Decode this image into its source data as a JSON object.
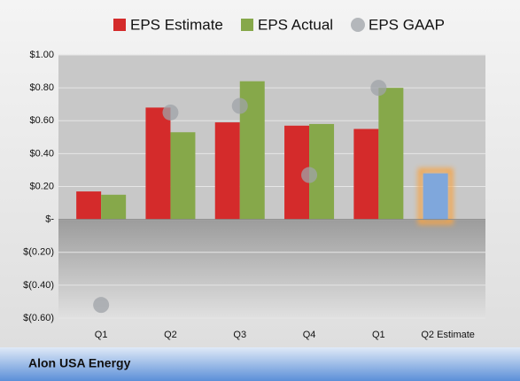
{
  "chart_data": {
    "type": "bar",
    "title": "Alon USA Energy",
    "categories": [
      "Q1",
      "Q2",
      "Q3",
      "Q4",
      "Q1",
      "Q2 Estimate"
    ],
    "series": [
      {
        "name": "EPS Estimate",
        "color": "#d42b2b",
        "style": "bar",
        "values": [
          0.17,
          0.68,
          0.59,
          0.57,
          0.55,
          null
        ]
      },
      {
        "name": "EPS Actual",
        "color": "#86a84a",
        "style": "bar",
        "values": [
          0.15,
          0.53,
          0.84,
          0.58,
          0.8,
          null
        ]
      },
      {
        "name": "EPS GAAP",
        "color": "#9fa3a8",
        "style": "dot",
        "values": [
          -0.52,
          0.65,
          0.69,
          0.27,
          0.8,
          null
        ]
      },
      {
        "color": "#7fa7dc",
        "style": "bar",
        "values": [
          null,
          null,
          null,
          null,
          null,
          0.28
        ]
      }
    ],
    "ylim": [
      -0.6,
      1.0
    ],
    "yticks": [
      {
        "value": -0.6,
        "label": "$(0.60)"
      },
      {
        "value": -0.4,
        "label": "$(0.40)"
      },
      {
        "value": -0.2,
        "label": "$(0.20)"
      },
      {
        "value": 0,
        "label": "$-"
      },
      {
        "value": 0.2,
        "label": "$0.20"
      },
      {
        "value": 0.4,
        "label": "$0.40"
      },
      {
        "value": 0.6,
        "label": "$0.60"
      },
      {
        "value": 0.8,
        "label": "$0.80"
      },
      {
        "value": 1.0,
        "label": "$1.00"
      }
    ],
    "grid": true
  }
}
